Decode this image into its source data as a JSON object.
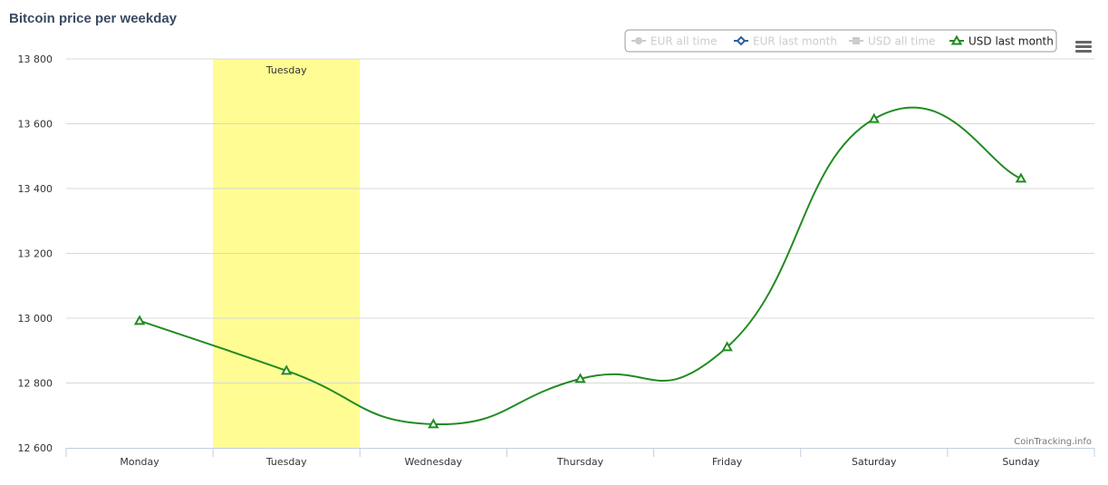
{
  "chart_data": {
    "type": "line",
    "title": "Bitcoin price per weekday",
    "categories": [
      "Monday",
      "Tuesday",
      "Wednesday",
      "Thursday",
      "Friday",
      "Saturday",
      "Sunday"
    ],
    "ylim": [
      12600,
      13800
    ],
    "yticks": [
      "12 600",
      "12 800",
      "13 000",
      "13 200",
      "13 400",
      "13 600",
      "13 800"
    ],
    "ytick_values": [
      12600,
      12800,
      13000,
      13200,
      13400,
      13600,
      13800
    ],
    "grid": true,
    "legend_placement": "top-right",
    "highlight_band": {
      "category": "Tuesday",
      "label": "Tuesday",
      "color": "#fffc94"
    },
    "series": [
      {
        "name": "EUR all time",
        "visible": false,
        "color": "#cccccc",
        "marker": "circle"
      },
      {
        "name": "EUR last month",
        "visible": false,
        "color": "#2f5f9e",
        "marker": "diamond"
      },
      {
        "name": "USD all time",
        "visible": false,
        "color": "#cccccc",
        "marker": "square"
      },
      {
        "name": "USD last month",
        "visible": true,
        "color": "#228b22",
        "marker": "triangle",
        "values": [
          12992,
          12838,
          12673,
          12813,
          12911,
          13615,
          13431
        ]
      }
    ],
    "credits": "CoinTracking.info"
  },
  "menu_icon": "hamburger-menu-icon"
}
